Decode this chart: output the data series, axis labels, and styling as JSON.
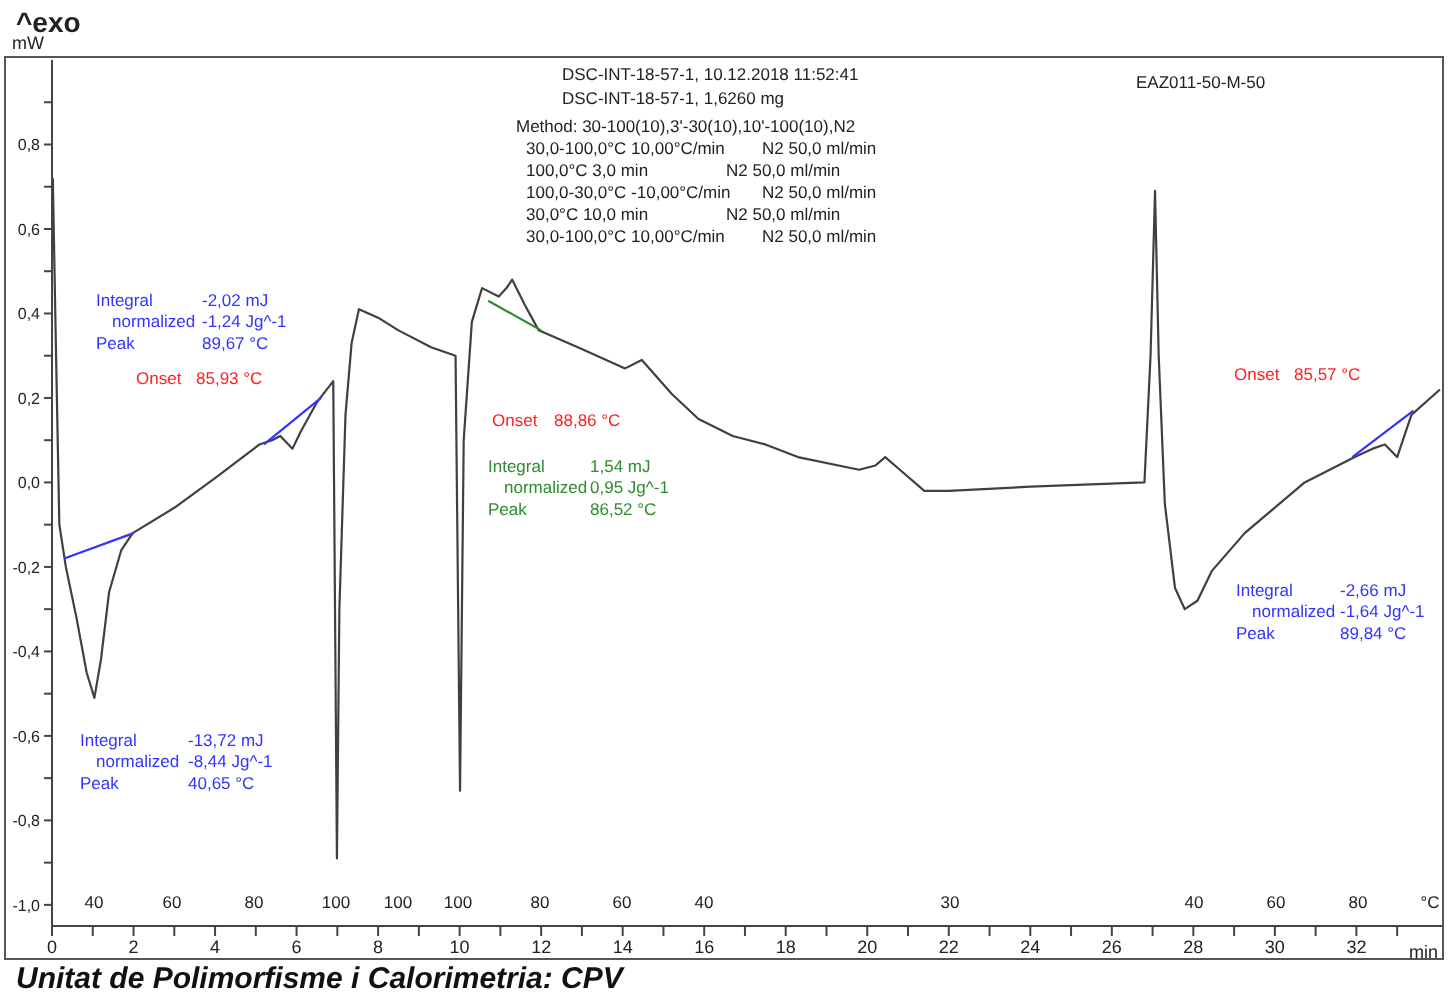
{
  "chart_data": {
    "type": "line",
    "ylabel": "mW",
    "xlabel": "min",
    "annotations": [
      "^exo",
      "DSC-INT-18-57-1, 10.12.2018 11:52:41",
      "DSC-INT-18-57-1, 1,6260 mg",
      "Method: 30-100(10),3'-30(10),10'-100(10),N2",
      "30,0-100,0°C 10,00°C/min  N2 50,0 ml/min",
      "100,0°C 3,0 min  N2 50,0 ml/min",
      "100,0-30,0°C -10,00°C/min  N2 50,0 ml/min",
      "30,0°C 10,0 min  N2 50,0 ml/min",
      "30,0-100,0°C 10,00°C/min  N2 50,0 ml/min",
      "EAZ011-50-M-50",
      "Unitat de Polimorfisme i Calorimetria: CPV",
      "Integral  -2,02 mJ\nnormalized  -1,24 Jg^-1\nPeak  89,67 °C",
      "Onset  85,93 °C",
      "Integral  -13,72 mJ\nnormalized  -8,44 Jg^-1\nPeak  40,65 °C",
      "Onset  88,86 °C",
      "Integral  1,54 mJ\nnormalized  0,95 Jg^-1\nPeak  86,52 °C",
      "Onset  85,57 °C",
      "Integral  -2,66 mJ\nnormalized  -1,64 Jg^-1\nPeak  89,84 °C",
      "40",
      "60",
      "80",
      "100",
      "100",
      "100",
      "80",
      "60",
      "40",
      "30",
      "40",
      "60",
      "80",
      "°C"
    ],
    "series": [
      {
        "color": "#404040",
        "x": [
          0.02,
          0.1,
          0.18,
          0.34,
          0.6,
          0.85,
          1.04,
          1.2,
          1.4,
          1.7,
          1.98,
          3,
          4,
          5.09,
          5.4,
          5.6,
          5.9,
          6.1,
          6.5,
          6.9,
          6.99,
          7.05,
          7.2,
          7.35,
          7.53,
          8,
          8.5,
          9.3,
          9.9,
          10.01,
          10.1,
          10.3,
          10.55,
          10.96,
          11.15,
          11.29,
          11.6,
          11.94,
          12.9,
          14.06,
          14.47,
          15.2,
          15.86,
          16.7,
          17.5,
          18.3,
          19.8,
          20.2,
          20.44,
          20.8,
          21.4,
          22,
          24,
          26.8,
          26.95,
          27.06,
          27.15,
          27.3,
          27.55,
          27.79,
          28.1,
          28.45,
          29.26,
          30.73,
          31.96,
          32.4,
          32.7,
          33.0,
          33.35,
          34.05
        ],
        "values": [
          0.72,
          0.3,
          -0.1,
          -0.2,
          -0.32,
          -0.45,
          -0.51,
          -0.42,
          -0.26,
          -0.16,
          -0.12,
          -0.06,
          0.01,
          0.09,
          0.1,
          0.11,
          0.08,
          0.12,
          0.19,
          0.24,
          -0.89,
          -0.3,
          0.16,
          0.33,
          0.41,
          0.39,
          0.36,
          0.32,
          0.3,
          -0.73,
          0.1,
          0.38,
          0.46,
          0.44,
          0.46,
          0.48,
          0.42,
          0.36,
          0.32,
          0.27,
          0.29,
          0.21,
          0.15,
          0.11,
          0.09,
          0.06,
          0.03,
          0.04,
          0.06,
          0.03,
          -0.02,
          -0.02,
          -0.01,
          0.0,
          0.3,
          0.69,
          0.3,
          -0.05,
          -0.25,
          -0.3,
          -0.28,
          -0.21,
          -0.12,
          0.0,
          0.06,
          0.08,
          0.09,
          0.06,
          0.16,
          0.22
        ]
      },
      {
        "color": "#3333ff",
        "x": [
          0.3,
          2.0
        ],
        "values": [
          -0.18,
          -0.12
        ]
      },
      {
        "color": "#3333ff",
        "x": [
          5.2,
          6.6
        ],
        "values": [
          0.09,
          0.2
        ]
      },
      {
        "color": "#2e8b2e",
        "x": [
          10.7,
          12.0
        ],
        "values": [
          0.43,
          0.36
        ]
      },
      {
        "color": "#3333ff",
        "x": [
          31.9,
          33.4
        ],
        "values": [
          0.06,
          0.17
        ]
      }
    ],
    "xlim": [
      0,
      34.1
    ],
    "xticks": [
      0,
      {
        "value": 1,
        "label": null
      },
      2,
      {
        "value": 3,
        "label": null
      },
      4,
      {
        "value": 5,
        "label": null
      },
      6,
      {
        "value": 7,
        "label": null
      },
      8,
      {
        "value": 9,
        "label": null
      },
      10,
      {
        "value": 11,
        "label": null
      },
      12,
      {
        "value": 13,
        "label": null
      },
      14,
      {
        "value": 15,
        "label": null
      },
      16,
      {
        "value": 17,
        "label": null
      },
      18,
      {
        "value": 19,
        "label": null
      },
      20,
      {
        "value": 21,
        "label": null
      },
      22,
      {
        "value": 23,
        "label": null
      },
      24,
      {
        "value": 25,
        "label": null
      },
      26,
      {
        "value": 27,
        "label": null
      },
      28,
      {
        "value": 29,
        "label": null
      },
      30,
      {
        "value": 31,
        "label": null
      },
      32,
      {
        "value": 33,
        "label": null
      }
    ],
    "ylim": [
      -1.05,
      1.0
    ],
    "yticks": [
      {
        "value": -1.0,
        "label": "-1,0"
      },
      {
        "value": -0.9,
        "label": null
      },
      {
        "value": -0.8,
        "label": "-0,8"
      },
      {
        "value": -0.7,
        "label": null
      },
      {
        "value": -0.6,
        "label": "-0,6"
      },
      {
        "value": -0.5,
        "label": null
      },
      {
        "value": -0.4,
        "label": "-0,4"
      },
      {
        "value": -0.3,
        "label": null
      },
      {
        "value": -0.2,
        "label": "-0,2"
      },
      {
        "value": -0.1,
        "label": null
      },
      {
        "value": 0.0,
        "label": "0,0"
      },
      {
        "value": 0.1,
        "label": null
      },
      {
        "value": 0.2,
        "label": "0,2"
      },
      {
        "value": 0.3,
        "label": null
      },
      {
        "value": 0.4,
        "label": "0,4"
      },
      {
        "value": 0.5,
        "label": null
      },
      {
        "value": 0.6,
        "label": "0,6"
      },
      {
        "value": 0.7,
        "label": null
      },
      {
        "value": 0.8,
        "label": "0,8"
      },
      {
        "value": 0.9,
        "label": null
      }
    ],
    "grid": false,
    "marker": "none",
    "line_style": "solid"
  }
}
